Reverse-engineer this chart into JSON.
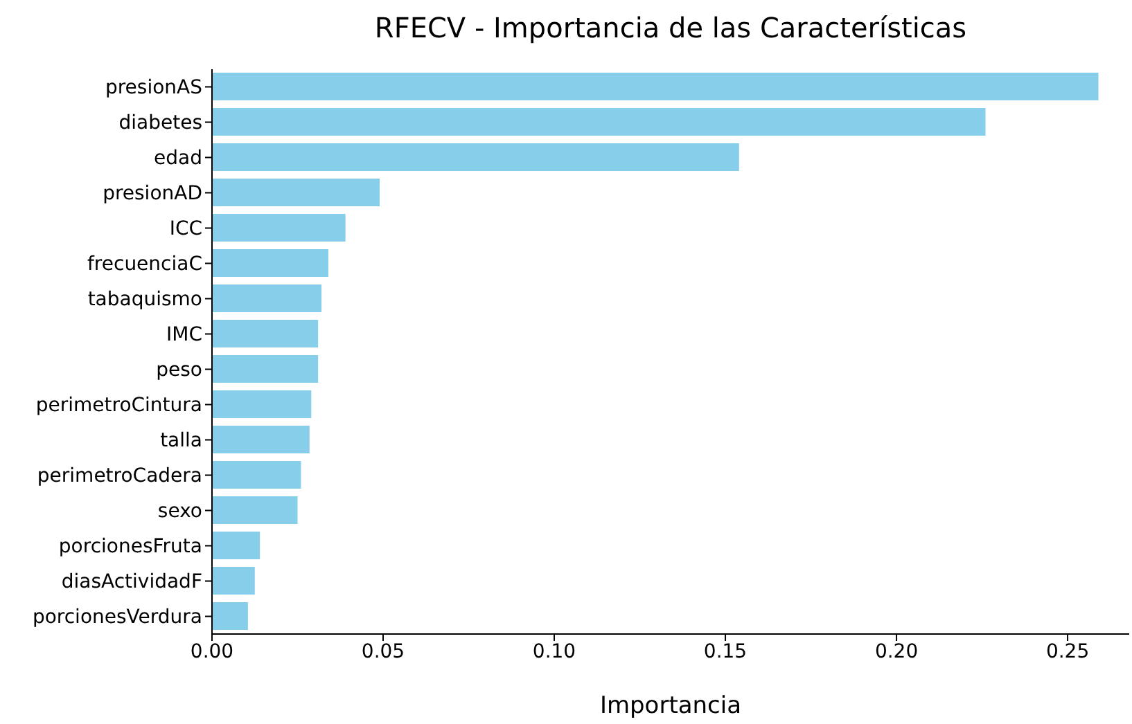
{
  "chart_data": {
    "type": "bar",
    "orientation": "horizontal",
    "title": "RFECV - Importancia de las Características",
    "xlabel": "Importancia",
    "categories": [
      "presionAS",
      "diabetes",
      "edad",
      "presionAD",
      "ICC",
      "frecuenciaC",
      "tabaquismo",
      "IMC",
      "peso",
      "perimetroCintura",
      "talla",
      "perimetroCadera",
      "sexo",
      "porcionesFruta",
      "diasActividadF",
      "porcionesVerdura"
    ],
    "values": [
      0.259,
      0.226,
      0.154,
      0.049,
      0.039,
      0.034,
      0.032,
      0.031,
      0.031,
      0.029,
      0.0285,
      0.026,
      0.025,
      0.014,
      0.0125,
      0.0105
    ],
    "color": "#87ceeb",
    "xlim": [
      0,
      0.268
    ],
    "xticks": [
      {
        "value": 0,
        "label": "0.00"
      },
      {
        "value": 0.05,
        "label": "0.05"
      },
      {
        "value": 0.1,
        "label": "0.10"
      },
      {
        "value": 0.15,
        "label": "0.15"
      },
      {
        "value": 0.2,
        "label": "0.20"
      },
      {
        "value": 0.25,
        "label": "0.25"
      }
    ]
  }
}
